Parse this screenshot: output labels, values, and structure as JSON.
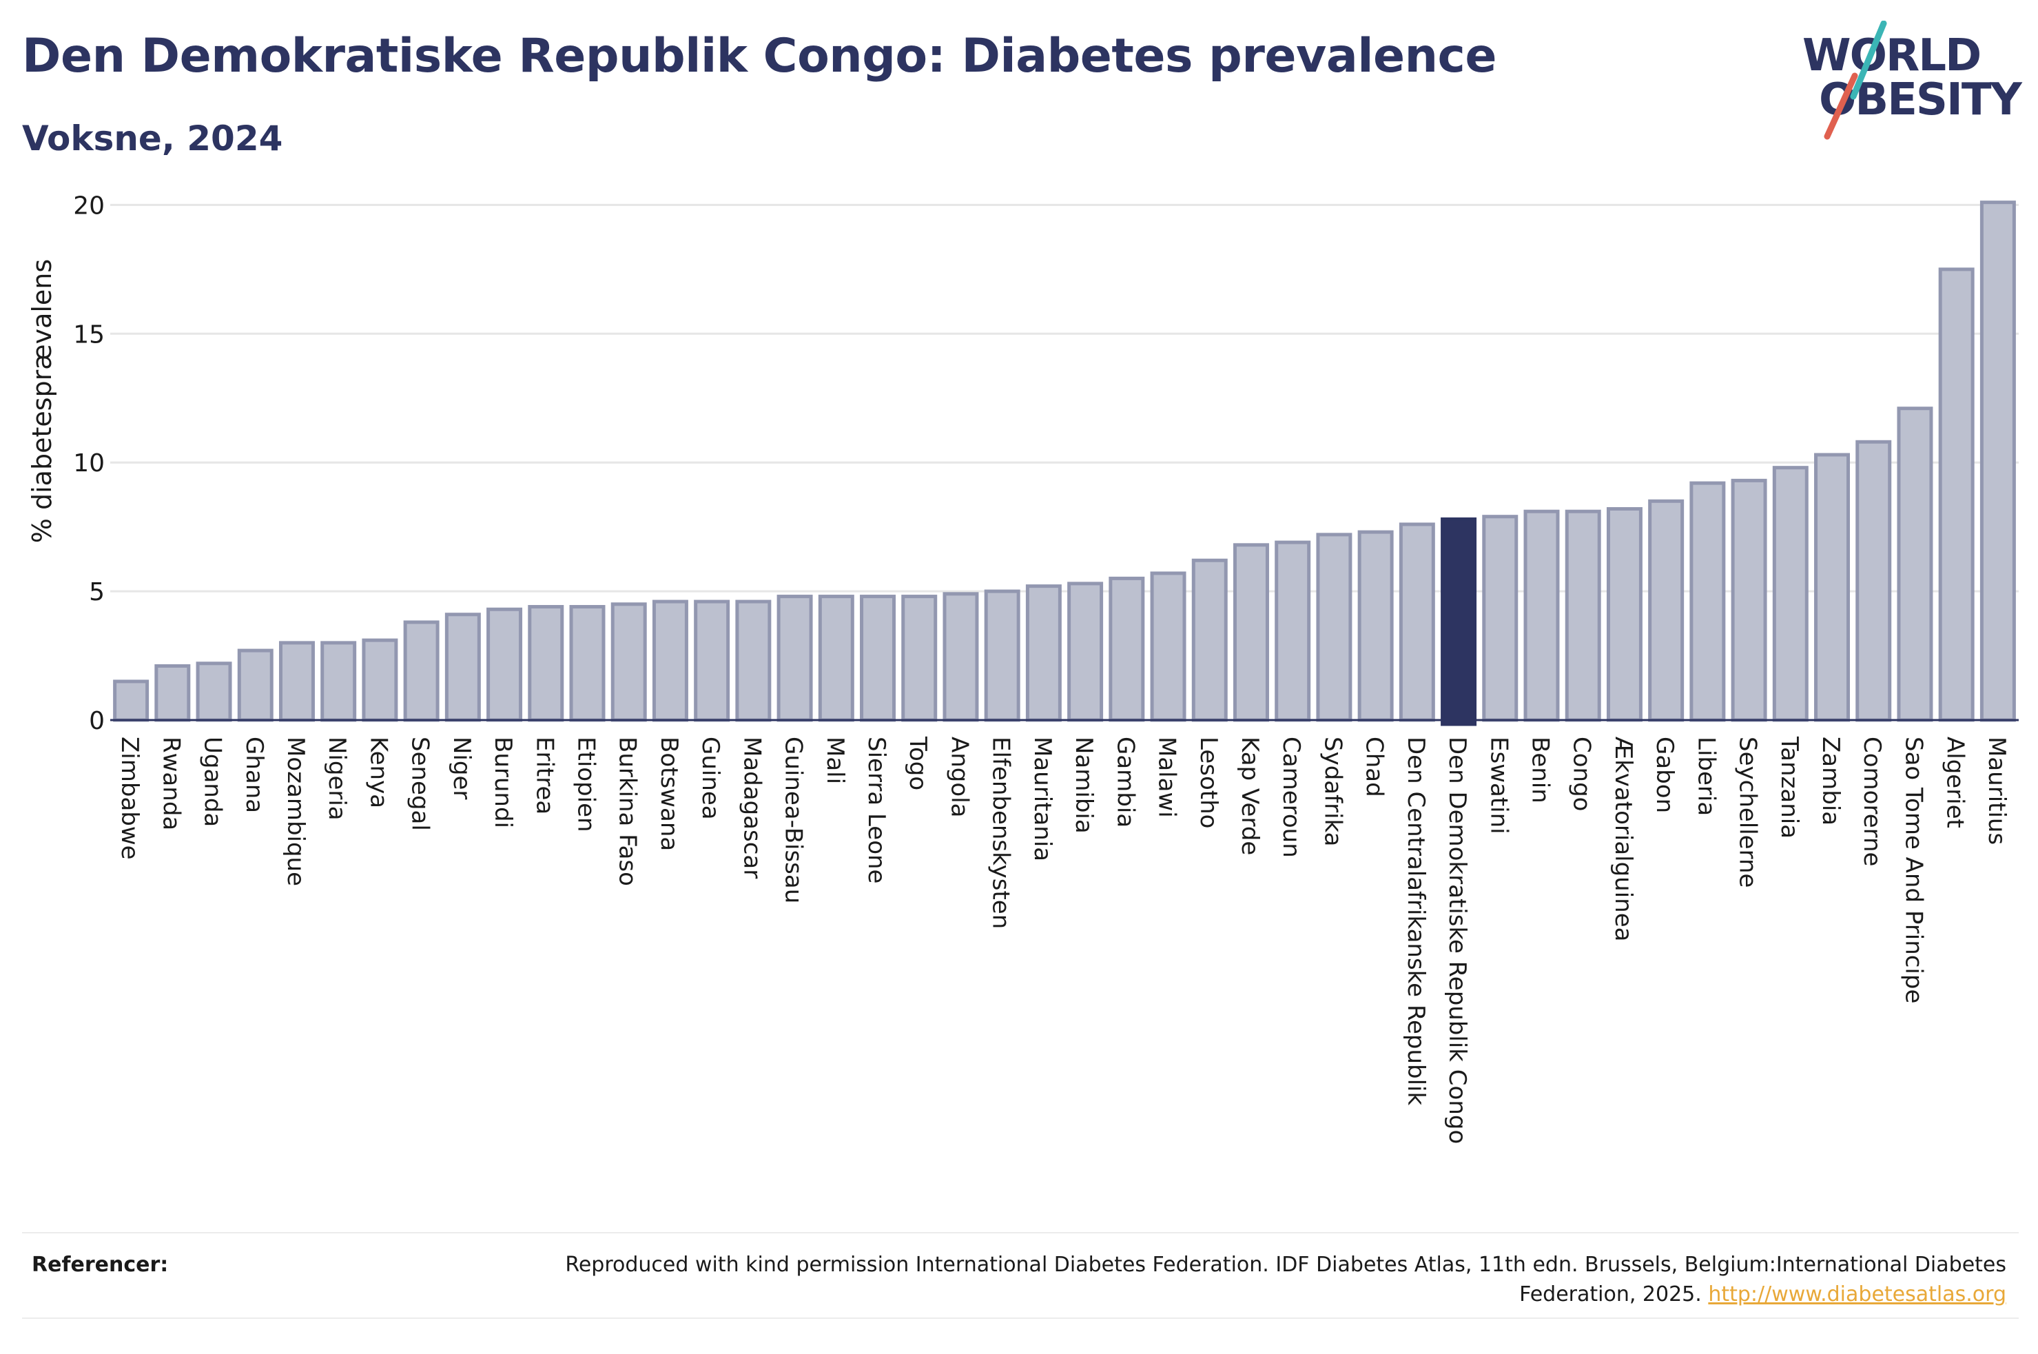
{
  "header": {
    "title": "Den Demokratiske Republik Congo: Diabetes prevalence",
    "subtitle": "Voksne, 2024"
  },
  "logo": {
    "line1": "WORLD",
    "line2": "OBESITY",
    "colors": {
      "text": "#2d3461",
      "slash_teal": "#3bb5b5",
      "slash_red": "#e0604f"
    }
  },
  "colors": {
    "bar_fill": "#bcc0cf",
    "bar_stroke": "#9297b0",
    "highlight": "#2d3461",
    "grid": "#e6e6e6",
    "axis": "#2d3461"
  },
  "chart_data": {
    "type": "bar",
    "title": "Den Demokratiske Republik Congo: Diabetes prevalence",
    "subtitle": "Voksne, 2024",
    "xlabel": "",
    "ylabel": "% diabetesprævalens",
    "ylim": [
      0,
      21
    ],
    "yticks": [
      0,
      5,
      10,
      15,
      20
    ],
    "grid": true,
    "highlight": "Den Demokratiske Republik Congo",
    "categories": [
      "Zimbabwe",
      "Rwanda",
      "Uganda",
      "Ghana",
      "Mozambique",
      "Nigeria",
      "Kenya",
      "Senegal",
      "Niger",
      "Burundi",
      "Eritrea",
      "Etiopien",
      "Burkina Faso",
      "Botswana",
      "Guinea",
      "Madagascar",
      "Guinea-Bissau",
      "Mali",
      "Sierra Leone",
      "Togo",
      "Angola",
      "Elfenbenskysten",
      "Mauritania",
      "Namibia",
      "Gambia",
      "Malawi",
      "Lesotho",
      "Kap Verde",
      "Cameroun",
      "Sydafrika",
      "Chad",
      "Den Centralafrikanske Republik",
      "Den Demokratiske Republik Congo",
      "Eswatini",
      "Benin",
      "Congo",
      "Ækvatorialguinea",
      "Gabon",
      "Liberia",
      "Seychellerne",
      "Tanzania",
      "Zambia",
      "Comorerne",
      "Sao Tome And Principe",
      "Algeriet",
      "Mauritius"
    ],
    "values": [
      1.5,
      2.1,
      2.2,
      2.7,
      3.0,
      3.0,
      3.1,
      3.8,
      4.1,
      4.3,
      4.4,
      4.4,
      4.5,
      4.6,
      4.6,
      4.6,
      4.8,
      4.8,
      4.8,
      4.8,
      4.9,
      5.0,
      5.2,
      5.3,
      5.5,
      5.7,
      6.2,
      6.8,
      6.9,
      7.2,
      7.3,
      7.6,
      7.8,
      7.9,
      8.1,
      8.1,
      8.2,
      8.5,
      9.2,
      9.3,
      9.8,
      10.3,
      10.8,
      12.1,
      17.5,
      20.1
    ]
  },
  "references": {
    "label": "Referencer:",
    "text": "Reproduced with kind permission International Diabetes Federation. IDF Diabetes Atlas, 11th edn. Brussels, Belgium:International Diabetes Federation, 2025.",
    "link": "http://www.diabetesatlas.org"
  }
}
